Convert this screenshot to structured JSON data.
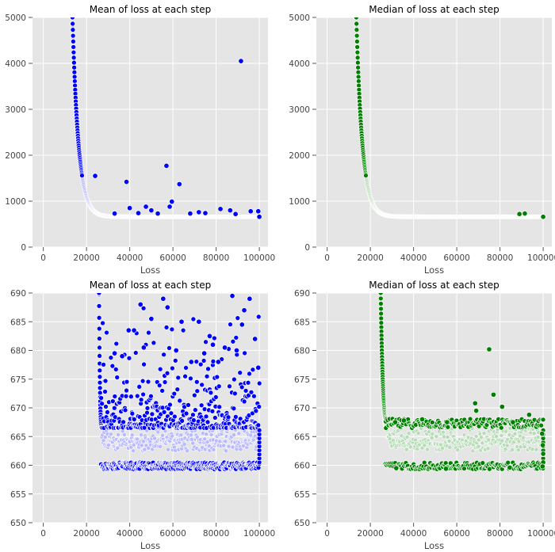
{
  "chart_data": [
    {
      "type": "scatter",
      "title": "Mean of loss at each step",
      "xlabel": "Loss",
      "ylabel": "",
      "xlim": [
        -5000,
        104000
      ],
      "ylim": [
        0,
        5000
      ],
      "xticks": [
        "0",
        "20000",
        "40000",
        "60000",
        "80000",
        "100000"
      ],
      "yticks": [
        "0",
        "1000",
        "2000",
        "3000",
        "4000",
        "5000"
      ],
      "grid": true,
      "color": "#0000ff",
      "light_color": "#b9b9ff",
      "curve": {
        "x_start": 13500,
        "y_start": 5000,
        "x_end": 100000,
        "plateau": 660,
        "decay": 2800
      },
      "outliers": [
        [
          24000,
          1550
        ],
        [
          38500,
          1420
        ],
        [
          57000,
          1770
        ],
        [
          63000,
          1370
        ],
        [
          91500,
          4050
        ],
        [
          59500,
          990
        ],
        [
          58500,
          880
        ],
        [
          47500,
          880
        ],
        [
          82000,
          830
        ],
        [
          86500,
          800
        ],
        [
          96000,
          780
        ],
        [
          99500,
          780
        ],
        [
          40000,
          850
        ],
        [
          50000,
          800
        ],
        [
          100000,
          660
        ],
        [
          72000,
          760
        ],
        [
          75000,
          740
        ],
        [
          68000,
          730
        ],
        [
          33000,
          730
        ],
        [
          44000,
          740
        ],
        [
          53000,
          730
        ],
        [
          89000,
          720
        ]
      ]
    },
    {
      "type": "scatter",
      "title": "Median of loss at each step",
      "xlabel": "Loss",
      "ylabel": "",
      "xlim": [
        -5000,
        104000
      ],
      "ylim": [
        0,
        5000
      ],
      "xticks": [
        "0",
        "20000",
        "40000",
        "60000",
        "80000",
        "100000"
      ],
      "yticks": [
        "0",
        "1000",
        "2000",
        "3000",
        "4000",
        "5000"
      ],
      "grid": true,
      "color": "#008000",
      "light_color": "#b7dcb7",
      "curve": {
        "x_start": 13500,
        "y_start": 5000,
        "x_end": 100000,
        "plateau": 660,
        "decay": 2800
      },
      "outliers": [
        [
          89000,
          720
        ],
        [
          91500,
          730
        ],
        [
          100000,
          660
        ]
      ]
    },
    {
      "type": "scatter",
      "title": "Mean of loss at each step",
      "xlabel": "Loss",
      "ylabel": "",
      "xlim": [
        -5000,
        104000
      ],
      "ylim": [
        650,
        690
      ],
      "xticks": [
        "0",
        "20000",
        "40000",
        "60000",
        "80000",
        "100000"
      ],
      "yticks": [
        "650",
        "655",
        "660",
        "665",
        "670",
        "675",
        "680",
        "685",
        "690"
      ],
      "grid": true,
      "color": "#0000ff",
      "light_color": "#b9b9ff",
      "curve": {
        "x_start": 25800,
        "y_start": 690,
        "x_end": 100000,
        "plateau": 663.5,
        "decay": 450
      },
      "band": [
        660.5,
        666.5
      ],
      "spread_max": 690,
      "outliers": [
        [
          45000,
          688
        ],
        [
          55500,
          689
        ],
        [
          87500,
          689.5
        ],
        [
          95500,
          689
        ],
        [
          57500,
          687.5
        ],
        [
          93000,
          687
        ],
        [
          50000,
          685.5
        ],
        [
          64000,
          685
        ],
        [
          72000,
          685
        ],
        [
          92000,
          684.5
        ],
        [
          39500,
          683.5
        ],
        [
          42000,
          683.5
        ],
        [
          77000,
          682.5
        ],
        [
          98000,
          682
        ],
        [
          46500,
          680.5
        ],
        [
          61500,
          680
        ],
        [
          84000,
          680.5
        ],
        [
          74500,
          679.5
        ],
        [
          36500,
          679
        ],
        [
          78500,
          681
        ],
        [
          81000,
          678
        ],
        [
          89500,
          680
        ],
        [
          99500,
          677
        ],
        [
          68500,
          678
        ],
        [
          33000,
          679.5
        ]
      ]
    },
    {
      "type": "scatter",
      "title": "Median of loss at each step",
      "xlabel": "Loss",
      "ylabel": "",
      "xlim": [
        -5000,
        104000
      ],
      "ylim": [
        650,
        690
      ],
      "xticks": [
        "0",
        "20000",
        "40000",
        "60000",
        "80000",
        "100000"
      ],
      "yticks": [
        "650",
        "655",
        "660",
        "665",
        "670",
        "675",
        "680",
        "685",
        "690"
      ],
      "grid": true,
      "color": "#008000",
      "light_color": "#b7dcb7",
      "curve": {
        "x_start": 24800,
        "y_start": 690,
        "x_end": 100000,
        "plateau": 663.5,
        "decay": 1100
      },
      "band": [
        660.5,
        666.5
      ],
      "spread_max": 668,
      "outliers": [
        [
          75000,
          680.2
        ],
        [
          77000,
          672.3
        ],
        [
          81000,
          670.2
        ],
        [
          68500,
          670.8
        ],
        [
          69000,
          669.5
        ],
        [
          93500,
          668.8
        ],
        [
          44000,
          668.0
        ],
        [
          55500,
          667.5
        ],
        [
          86000,
          667.5
        ],
        [
          35500,
          667.8
        ],
        [
          31500,
          667.5
        ],
        [
          99500,
          665.5
        ],
        [
          99800,
          663.5
        ],
        [
          100000,
          662
        ],
        [
          100000,
          660.5
        ],
        [
          99700,
          659.8
        ],
        [
          32000,
          659.5
        ],
        [
          55000,
          659.4
        ],
        [
          84500,
          659.6
        ]
      ]
    }
  ]
}
